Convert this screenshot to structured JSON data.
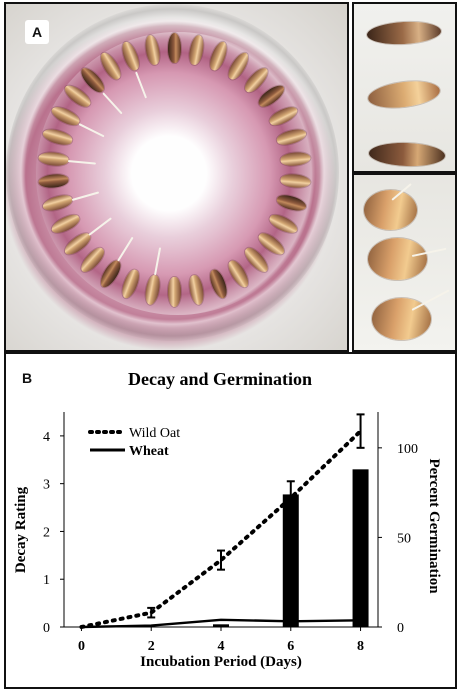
{
  "figure": {
    "panel_a_label": "A",
    "panel_b_label": "B"
  },
  "chart_data": {
    "type": "line",
    "title": "Decay and Germination",
    "xlabel": "Incubation Period (Days)",
    "ylabel": "Decay Rating",
    "y2label": "Percent Germination",
    "x": [
      0,
      2,
      4,
      6,
      8
    ],
    "xlim": [
      0,
      8
    ],
    "ylim": [
      0,
      4.5
    ],
    "y2lim": [
      0,
      120
    ],
    "x_ticks": [
      0,
      2,
      4,
      6,
      8
    ],
    "y_ticks": [
      0,
      1,
      2,
      3,
      4
    ],
    "y2_ticks": [
      0,
      50,
      100
    ],
    "legend_position": "top-left",
    "grid": false,
    "series": [
      {
        "name": "Wild Oat",
        "type": "line",
        "axis": "left",
        "style": "dotted",
        "color": "#000000",
        "values": [
          0,
          0.3,
          1.4,
          2.7,
          4.1
        ],
        "error": [
          0,
          0.1,
          0.2,
          0.35,
          0.35
        ]
      },
      {
        "name": "Wheat",
        "type": "line",
        "axis": "left",
        "style": "solid",
        "color": "#000000",
        "values": [
          0,
          0.03,
          0.15,
          0.12,
          0.14
        ]
      },
      {
        "type": "bar",
        "axis": "right",
        "color": "#000000",
        "values": [
          0,
          0,
          1.5,
          74,
          88
        ]
      }
    ]
  }
}
